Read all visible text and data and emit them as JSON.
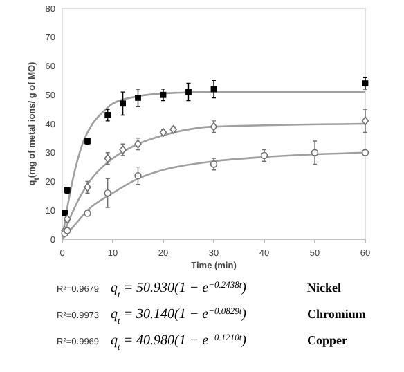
{
  "chart_data": {
    "type": "scatter",
    "xlabel": "Time (min)",
    "ylabel": "q$_{t}$(mg of metal ions/ g of MO)",
    "xlim": [
      0,
      60
    ],
    "ylim": [
      0,
      80
    ],
    "xticks": [
      0,
      10,
      20,
      30,
      40,
      50,
      60
    ],
    "yticks": [
      0,
      10,
      20,
      30,
      40,
      50,
      60,
      70,
      80
    ],
    "grid": false,
    "series": [
      {
        "type": "line",
        "color": "#a0a0a0",
        "x": [
          0,
          1,
          2,
          4,
          6,
          8,
          10,
          15,
          20,
          30,
          60
        ],
        "values": [
          0,
          11,
          20,
          33,
          40,
          44,
          47,
          49.5,
          50.5,
          51,
          51
        ]
      },
      {
        "type": "line",
        "color": "#a0a0a0",
        "x": [
          0,
          1,
          3,
          5,
          10,
          15,
          20,
          30,
          60
        ],
        "values": [
          0,
          5,
          13,
          19,
          28,
          33,
          36,
          39,
          40
        ]
      },
      {
        "type": "line",
        "color": "#a0a0a0",
        "x": [
          0,
          1,
          3,
          5,
          10,
          15,
          20,
          30,
          40,
          60
        ],
        "values": [
          0,
          2,
          6,
          10,
          16,
          21,
          24,
          27,
          28.5,
          30
        ]
      },
      {
        "marker": "square",
        "color": "#000000",
        "x": [
          0.5,
          1,
          5,
          9,
          12,
          15,
          20,
          25,
          30,
          60
        ],
        "values": [
          9,
          17,
          34,
          43,
          47,
          49,
          50,
          51,
          52,
          54
        ],
        "errors": [
          null,
          1,
          1,
          2,
          4,
          3,
          2,
          3,
          3,
          2
        ]
      },
      {
        "marker": "diamond",
        "color": "#707070",
        "x": [
          0.5,
          1,
          5,
          9,
          12,
          15,
          20,
          22,
          30,
          60
        ],
        "values": [
          3,
          7,
          18,
          28,
          31,
          33,
          37,
          38,
          39,
          41
        ],
        "errors": [
          null,
          1,
          2,
          2,
          2,
          2,
          1,
          1,
          2,
          4
        ]
      },
      {
        "marker": "circle",
        "color": "#707070",
        "x": [
          0.5,
          1,
          5,
          9,
          15,
          30,
          40,
          50,
          60
        ],
        "values": [
          2,
          3,
          9,
          16,
          22,
          26,
          29,
          30,
          30
        ],
        "errors": [
          null,
          null,
          1,
          5,
          3,
          2,
          2,
          4,
          1
        ]
      }
    ],
    "annotations": [
      "R²=0.9679",
      "q$_{t}$ = 50.930(1 − e$^{−0.2438t}$)",
      "Nickel",
      "R²=0.9973",
      "q$_{t}$ = 30.140(1 − e$^{−0.0829t}$)",
      "Chromium",
      "R²=0.9969",
      "q$_{t}$ = 40.980(1 − e$^{−0.1210t}$)",
      "Copper"
    ]
  }
}
